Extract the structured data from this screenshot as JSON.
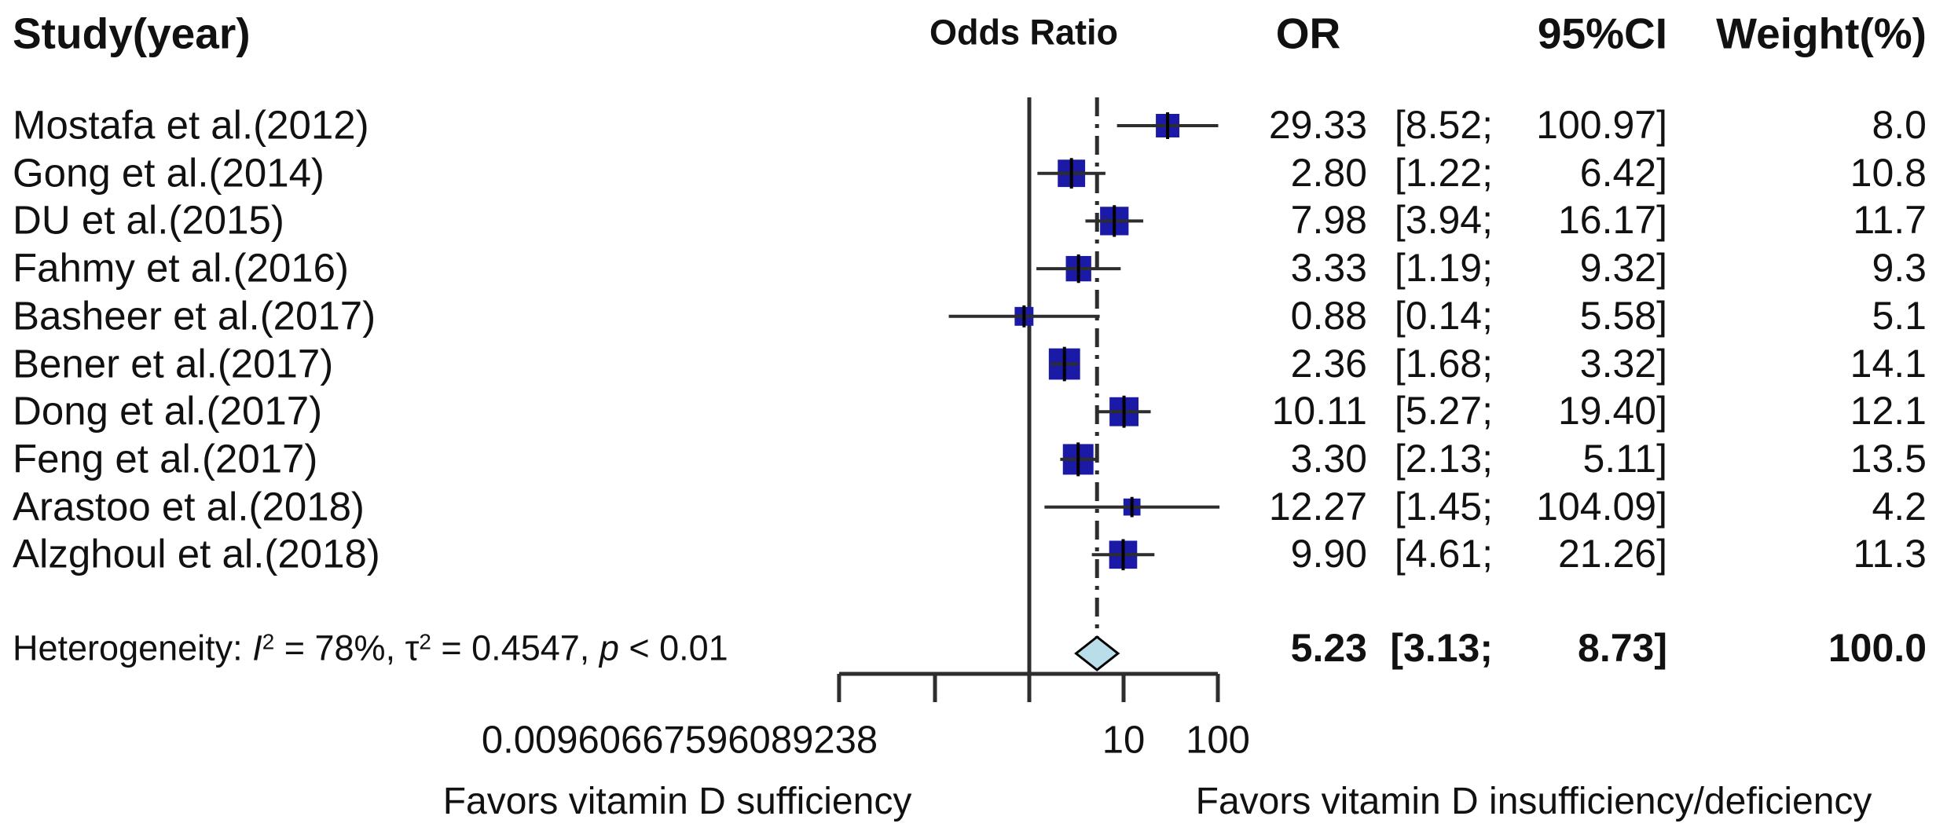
{
  "header": {
    "study_col": "Study(year)",
    "plot_col": "Odds Ratio",
    "or_col": "OR",
    "ci_col": "95%CI",
    "weight_col": "Weight(%)"
  },
  "chart_data": {
    "type": "forest",
    "x_scale": "log10",
    "xlim": [
      0.00960667596089238,
      100
    ],
    "effect_measure": "Odds Ratio",
    "x_ticks": [
      {
        "value": 0.00960667596089238,
        "label": "0.00960667596089238"
      },
      {
        "value": 0.1,
        "label": ""
      },
      {
        "value": 1,
        "label": ""
      },
      {
        "value": 10,
        "label": "10"
      },
      {
        "value": 100,
        "label": "100"
      }
    ],
    "studies": [
      {
        "label": "Mostafa et al.(2012)",
        "or": 29.33,
        "ci_low": 8.52,
        "ci_high": 100.97,
        "weight": 8.0
      },
      {
        "label": "Gong et al.(2014)",
        "or": 2.8,
        "ci_low": 1.22,
        "ci_high": 6.42,
        "weight": 10.8
      },
      {
        "label": "DU et al.(2015)",
        "or": 7.98,
        "ci_low": 3.94,
        "ci_high": 16.17,
        "weight": 11.7
      },
      {
        "label": "Fahmy et al.(2016)",
        "or": 3.33,
        "ci_low": 1.19,
        "ci_high": 9.32,
        "weight": 9.3
      },
      {
        "label": "Basheer et al.(2017)",
        "or": 0.88,
        "ci_low": 0.14,
        "ci_high": 5.58,
        "weight": 5.1
      },
      {
        "label": "Bener et al.(2017)",
        "or": 2.36,
        "ci_low": 1.68,
        "ci_high": 3.32,
        "weight": 14.1
      },
      {
        "label": "Dong et al.(2017)",
        "or": 10.11,
        "ci_low": 5.27,
        "ci_high": 19.4,
        "weight": 12.1
      },
      {
        "label": "Feng et al.(2017)",
        "or": 3.3,
        "ci_low": 2.13,
        "ci_high": 5.11,
        "weight": 13.5
      },
      {
        "label": "Arastoo et al.(2018)",
        "or": 12.27,
        "ci_low": 1.45,
        "ci_high": 104.09,
        "weight": 4.2
      },
      {
        "label": "Alzghoul et al.(2018)",
        "or": 9.9,
        "ci_low": 4.61,
        "ci_high": 21.26,
        "weight": 11.3
      }
    ],
    "summary": {
      "or": 5.23,
      "ci_low": 3.13,
      "ci_high": 8.73,
      "weight": 100.0
    },
    "heterogeneity": {
      "prefix": "Heterogeneity: ",
      "i_symbol": "I",
      "i_sup": "2",
      "i2_text": " = 78%, ",
      "tau_symbol": "τ",
      "tau_sup": "2",
      "tau2_text": " = 0.4547, ",
      "p_symbol": "p",
      "p_text": " < 0.01"
    },
    "favors_left": "Favors vitamin D sufficiency",
    "favors_right": "Favors vitamin D insufficiency/deficiency",
    "reference_line": 1,
    "summary_line": 5.23,
    "colors": {
      "square": "#1a1aa6",
      "diamond_fill": "#b9dde9",
      "diamond_stroke": "#000000",
      "line": "#2d2d2d",
      "text": "#111111"
    }
  }
}
